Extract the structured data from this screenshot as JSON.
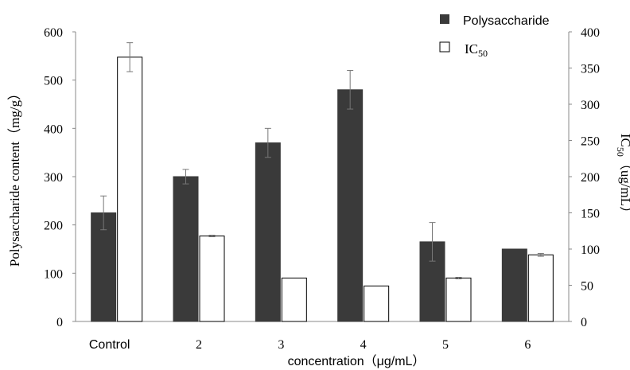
{
  "chart_data": {
    "type": "bar",
    "categories": [
      "Control",
      "2",
      "3",
      "4",
      "5",
      "6"
    ],
    "series": [
      {
        "name": "Polysaccharide",
        "axis": "left",
        "color": "#3a3a3a",
        "values": [
          225,
          300,
          370,
          480,
          165,
          150
        ],
        "errors": [
          35,
          15,
          30,
          40,
          40,
          0
        ]
      },
      {
        "name": "IC50",
        "axis": "right",
        "color": "#ffffff",
        "values": [
          365,
          118,
          60,
          49,
          60,
          92
        ],
        "errors": [
          20,
          1,
          0,
          0,
          1,
          2
        ]
      }
    ],
    "xlabel": "concentration（μg/mL）",
    "ylabel_left": "Polysaccharide content（mg/g）",
    "ylabel_right": "IC50（ug/mL）",
    "ylim_left": [
      0,
      600
    ],
    "yticks_left": [
      "0",
      "100",
      "200",
      "300",
      "400",
      "500",
      "600"
    ],
    "ylim_right": [
      0,
      400
    ],
    "yticks_right": [
      "0",
      "50",
      "100",
      "150",
      "200",
      "250",
      "300",
      "350",
      "400"
    ],
    "grid": false,
    "legend": "top-right",
    "legend_entries": [
      "Polysaccharide",
      "IC50"
    ]
  }
}
